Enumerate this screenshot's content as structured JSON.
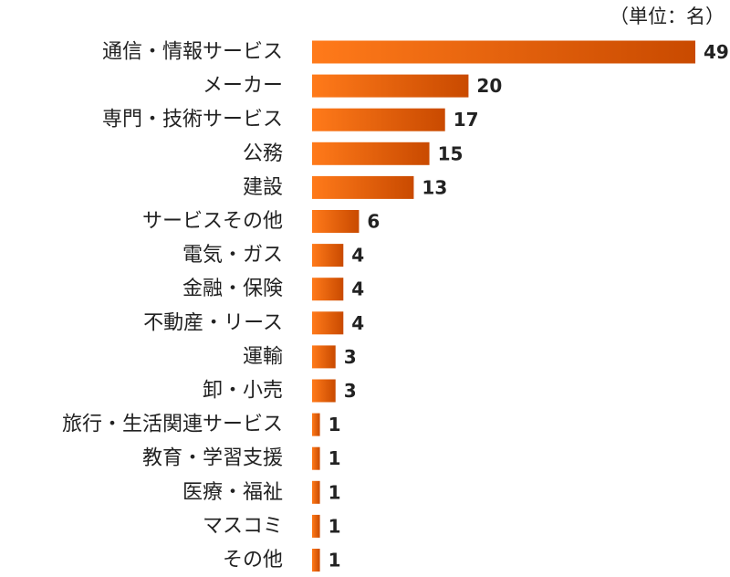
{
  "chart_data": {
    "type": "bar",
    "orientation": "horizontal",
    "unit_label": "（単位：名）",
    "categories": [
      "通信・情報サービス",
      "メーカー",
      "専門・技術サービス",
      "公務",
      "建設",
      "サービスその他",
      "電気・ガス",
      "金融・保険",
      "不動産・リース",
      "運輸",
      "卸・小売",
      "旅行・生活関連サービス",
      "教育・学習支援",
      "医療・福祉",
      "マスコミ",
      "その他"
    ],
    "values": [
      49,
      20,
      17,
      15,
      13,
      6,
      4,
      4,
      4,
      3,
      3,
      1,
      1,
      1,
      1,
      1
    ],
    "xlim": [
      0,
      49
    ],
    "grid": false,
    "legend": "none",
    "colors": {
      "bar_start": "#ff7a1a",
      "bar_end": "#c94a00",
      "text": "#222222"
    }
  }
}
